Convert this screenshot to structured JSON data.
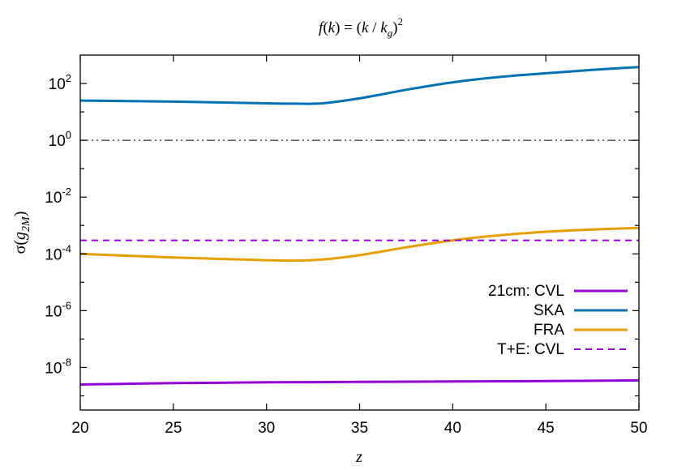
{
  "chart_data": {
    "type": "line",
    "title": {
      "f": "f",
      "open": "(",
      "k": "k",
      "eq": ") = (",
      "k2": "k",
      "slash": " / ",
      "kg": "k",
      "g": "g",
      "close": ")",
      "exp": "2"
    },
    "xlabel": "z",
    "ylabel": {
      "sigma": "σ(",
      "g": "g",
      "sub": "2M",
      "close": ")"
    },
    "xlim": [
      20,
      50
    ],
    "ylim_log10": [
      -9.5,
      3.0
    ],
    "y_scale": "log",
    "x_ticks": [
      "20",
      "25",
      "30",
      "35",
      "40",
      "45",
      "50"
    ],
    "y_ticks": [
      {
        "base": "10",
        "exp": "-8"
      },
      {
        "base": "10",
        "exp": "-6"
      },
      {
        "base": "10",
        "exp": "-4"
      },
      {
        "base": "10",
        "exp": "-2"
      },
      {
        "base": "10",
        "exp": "0"
      },
      {
        "base": "10",
        "exp": "2"
      }
    ],
    "legend_position": "right",
    "reference_line": {
      "y": 1,
      "style": "dash-dot-dot",
      "color": "#000000"
    },
    "series": [
      {
        "name": "21cm: CVL",
        "color": "#9400d3",
        "dash": "solid",
        "x": [
          20,
          25,
          30,
          35,
          40,
          45,
          50
        ],
        "y": [
          2.5e-09,
          2.8e-09,
          3e-09,
          3.1e-09,
          3.2e-09,
          3.3e-09,
          3.5e-09
        ]
      },
      {
        "name": "SKA",
        "color": "#0072b2",
        "dash": "solid",
        "x": [
          20,
          25,
          30,
          31.5,
          33,
          35,
          37.5,
          40,
          42.5,
          45,
          47.5,
          50
        ],
        "y": [
          25,
          23,
          20,
          19.5,
          20,
          30,
          60,
          110,
          170,
          230,
          300,
          380
        ]
      },
      {
        "name": "FRA",
        "color": "#e69f00",
        "dash": "solid",
        "x": [
          20,
          25,
          30,
          31.5,
          33,
          35,
          37.5,
          40,
          42.5,
          45,
          47.5,
          50
        ],
        "y": [
          0.0001,
          7.5e-05,
          6e-05,
          5.8e-05,
          6.3e-05,
          9e-05,
          0.00017,
          0.0003,
          0.00045,
          0.0006,
          0.00072,
          0.00082
        ]
      },
      {
        "name": "T+E: CVL",
        "color": "#9400d3",
        "dash": "dashed",
        "x": [
          20,
          50
        ],
        "y": [
          0.0003,
          0.0003
        ]
      }
    ]
  }
}
